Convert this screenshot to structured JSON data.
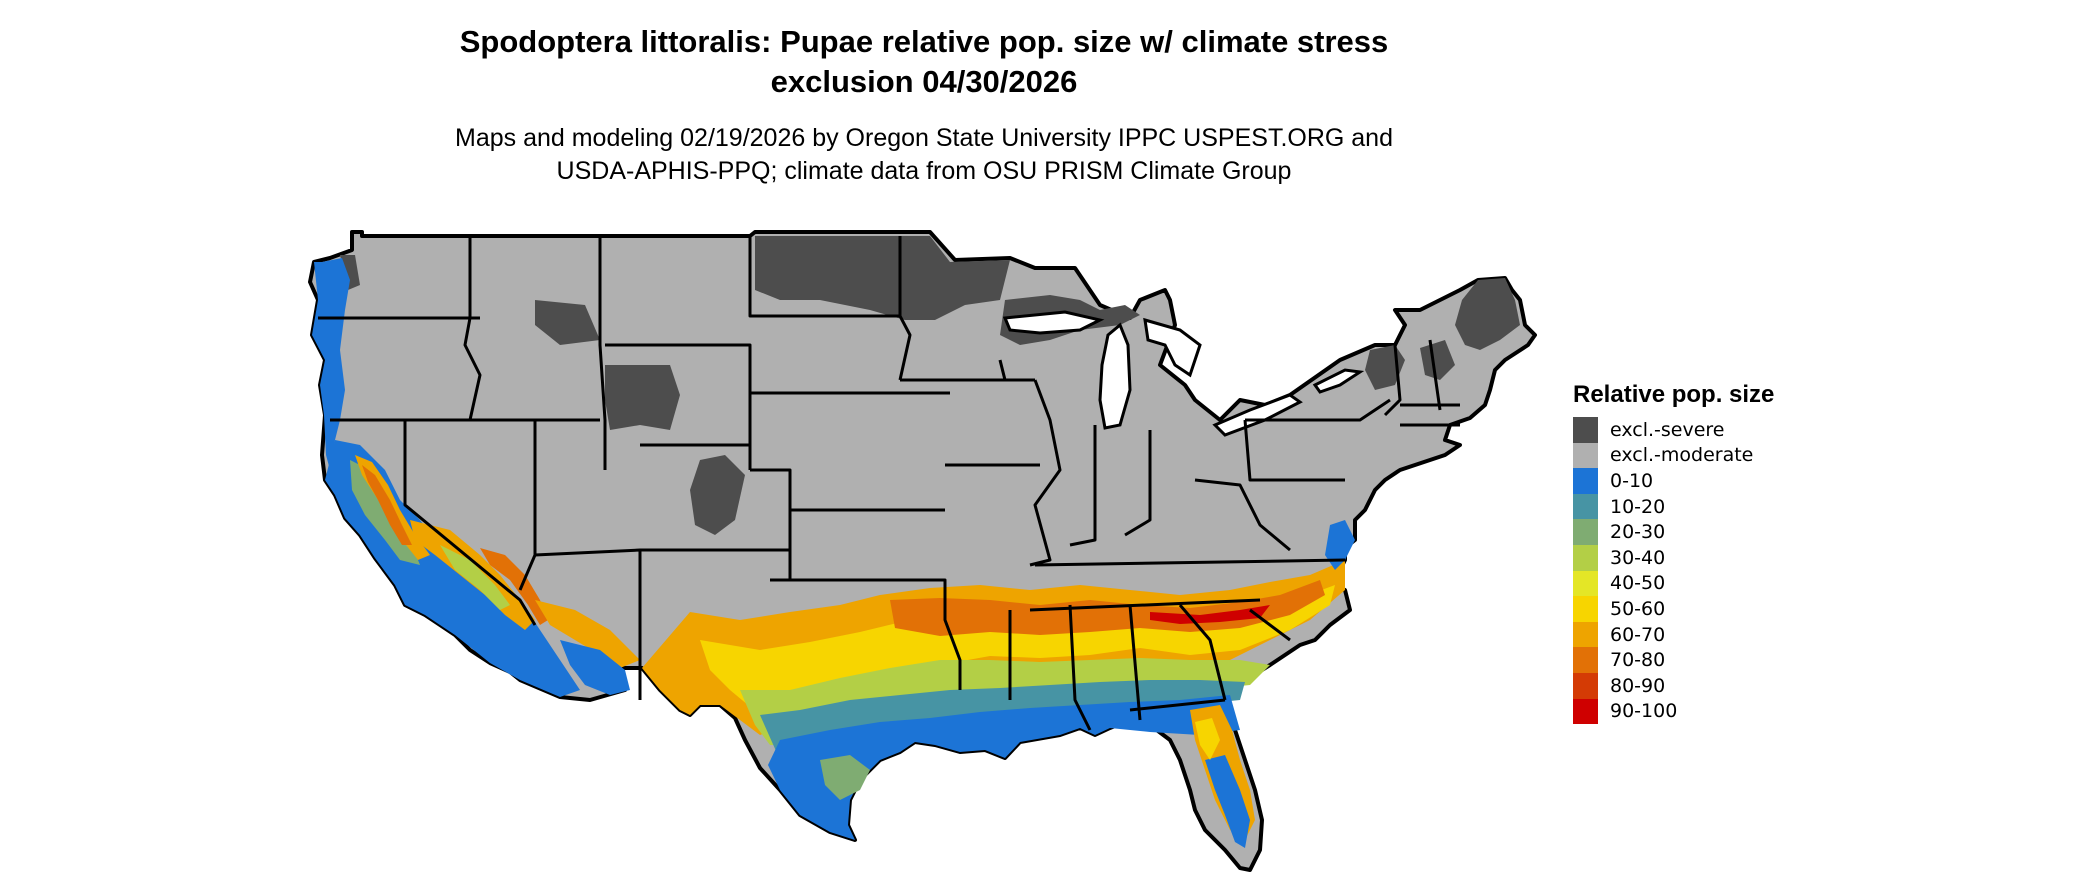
{
  "map": {
    "title_line1": "Spodoptera littoralis: Pupae relative pop. size w/ climate stress",
    "title_line2": "exclusion 04/30/2026",
    "subtitle_line1": "Maps and modeling 02/19/2026 by Oregon State University IPPC USPEST.ORG and",
    "subtitle_line2": "USDA-APHIS-PPQ; climate data from OSU PRISM Climate Group",
    "region": "Contiguous United States"
  },
  "legend": {
    "title": "Relative pop. size",
    "items": [
      {
        "label": "excl.-severe",
        "color": "#4d4d4d"
      },
      {
        "label": "excl.-moderate",
        "color": "#b0b0b0"
      },
      {
        "label": "0-10",
        "color": "#1c74d6"
      },
      {
        "label": "10-20",
        "color": "#4794a4"
      },
      {
        "label": "20-30",
        "color": "#7fac72"
      },
      {
        "label": "30-40",
        "color": "#b3cf46"
      },
      {
        "label": "40-50",
        "color": "#e4e626"
      },
      {
        "label": "50-60",
        "color": "#f7d500"
      },
      {
        "label": "60-70",
        "color": "#eea400"
      },
      {
        "label": "70-80",
        "color": "#e27106"
      },
      {
        "label": "80-90",
        "color": "#d43b05"
      },
      {
        "label": "90-100",
        "color": "#cf0000"
      }
    ]
  }
}
